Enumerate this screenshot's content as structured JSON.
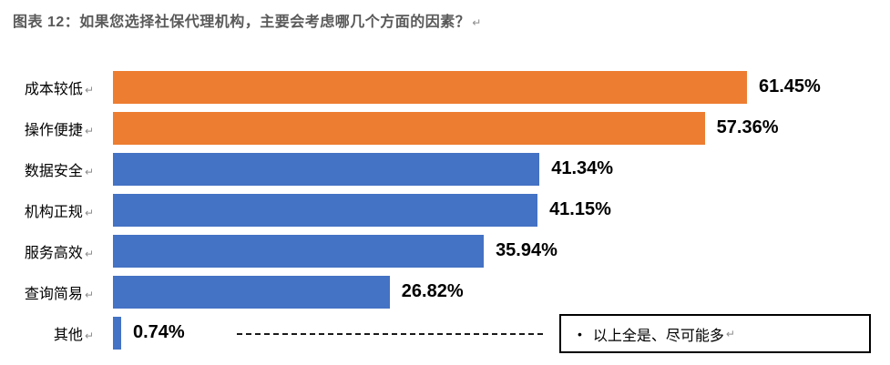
{
  "page": {
    "title": "图表 12：如果您选择社保代理机构，主要会考虑哪几个方面的因素？",
    "title_color": "#595959",
    "paragraph_mark": "↵"
  },
  "chart_data": {
    "type": "bar",
    "orientation": "horizontal",
    "title": "图表 12：如果您选择社保代理机构，主要会考虑哪几个方面的因素？",
    "categories": [
      "成本较低",
      "操作便捷",
      "数据安全",
      "机构正规",
      "服务高效",
      "查询简易",
      "其他"
    ],
    "values": [
      61.45,
      57.36,
      41.34,
      41.15,
      35.94,
      26.82,
      0.74
    ],
    "value_labels": [
      "61.45%",
      "57.36%",
      "41.34%",
      "41.15%",
      "35.94%",
      "26.82%",
      "0.74%"
    ],
    "bar_colors": [
      "#ED7D31",
      "#ED7D31",
      "#4472C4",
      "#4472C4",
      "#4472C4",
      "#4472C4",
      "#4472C4"
    ],
    "accent_orange": "#ED7D31",
    "accent_blue": "#4472C4",
    "xlim": [
      0,
      65
    ],
    "grid": false,
    "legend_position": "none",
    "annotation": {
      "bullet": "•",
      "text": "以上全是、尽可能多",
      "attached_to": "其他",
      "connector": "dashed-line"
    }
  }
}
